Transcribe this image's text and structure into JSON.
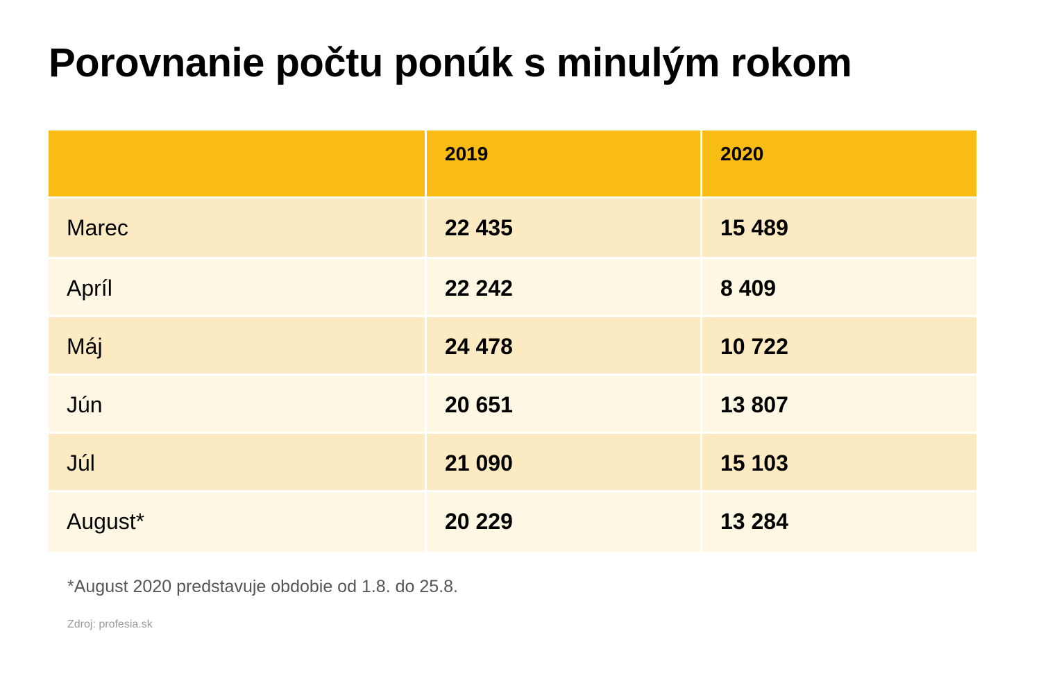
{
  "chart_data": {
    "type": "table",
    "title": "Porovnanie počtu ponúk s minulým rokom",
    "columns": [
      "",
      "2019",
      "2020"
    ],
    "rows": [
      {
        "label": "Marec",
        "values": [
          "22 435",
          "15 489"
        ]
      },
      {
        "label": "Apríl",
        "values": [
          "22 242",
          "8 409"
        ]
      },
      {
        "label": "Máj",
        "values": [
          "24 478",
          "10 722"
        ]
      },
      {
        "label": "Jún",
        "values": [
          "20 651",
          "13 807"
        ]
      },
      {
        "label": "Júl",
        "values": [
          "21 090",
          "15 103"
        ]
      },
      {
        "label": "August*",
        "values": [
          "20 229",
          "13 284"
        ]
      }
    ],
    "footnote": "*August 2020 predstavuje obdobie od 1.8. do 25.8.",
    "source": "Zdroj: profesia.sk"
  },
  "colors": {
    "header": "#f8bc14",
    "row_odd": "#fcebc2",
    "row_even": "#fef7e4"
  }
}
